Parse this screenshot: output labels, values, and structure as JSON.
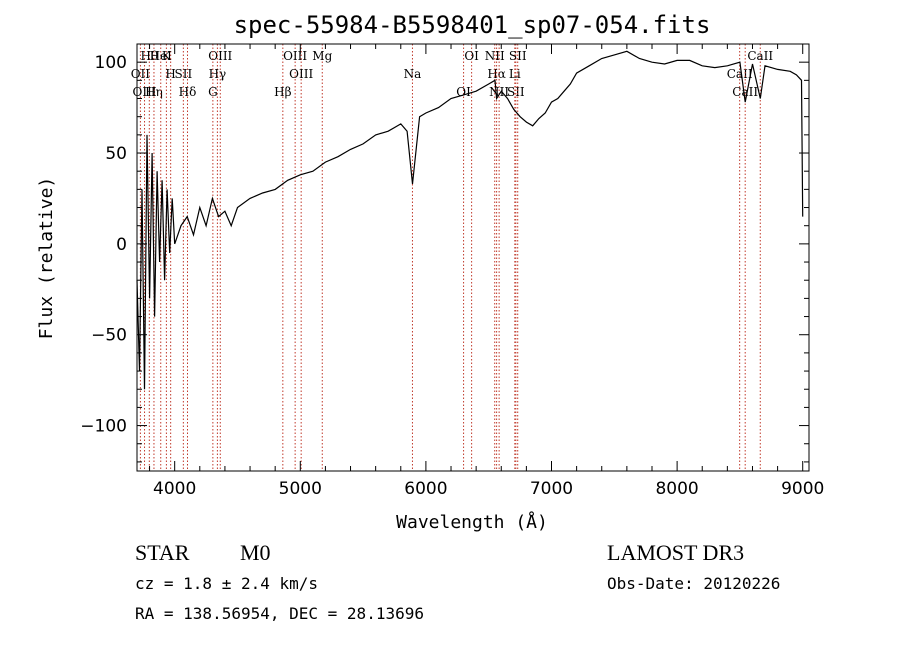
{
  "chart_data": {
    "type": "line",
    "title": "spec-55984-B5598401_sp07-054.fits",
    "xlabel": "Wavelength (Å)",
    "ylabel": "Flux (relative)",
    "xlim": [
      3700,
      9050
    ],
    "ylim": [
      -125,
      110
    ],
    "xticks": [
      4000,
      5000,
      6000,
      7000,
      8000,
      9000
    ],
    "yticks": [
      -100,
      -50,
      0,
      50,
      100
    ],
    "series": [
      {
        "name": "flux",
        "x": [
          3700,
          3720,
          3740,
          3760,
          3780,
          3800,
          3820,
          3840,
          3860,
          3880,
          3900,
          3920,
          3940,
          3960,
          3980,
          4000,
          4050,
          4100,
          4150,
          4200,
          4250,
          4300,
          4350,
          4400,
          4450,
          4500,
          4600,
          4700,
          4800,
          4900,
          5000,
          5100,
          5200,
          5300,
          5400,
          5500,
          5600,
          5700,
          5800,
          5850,
          5893,
          5950,
          6000,
          6100,
          6200,
          6300,
          6400,
          6500,
          6550,
          6563,
          6600,
          6650,
          6700,
          6750,
          6800,
          6850,
          6900,
          6950,
          7000,
          7050,
          7100,
          7150,
          7200,
          7300,
          7400,
          7500,
          7600,
          7700,
          7800,
          7900,
          8000,
          8100,
          8200,
          8300,
          8400,
          8500,
          8542,
          8600,
          8662,
          8700,
          8800,
          8900,
          8950,
          8990,
          9000
        ],
        "y": [
          -20,
          -70,
          30,
          -80,
          60,
          -30,
          50,
          -40,
          40,
          -10,
          35,
          -20,
          30,
          -5,
          25,
          0,
          10,
          15,
          5,
          20,
          10,
          25,
          15,
          18,
          10,
          20,
          25,
          28,
          30,
          35,
          38,
          40,
          45,
          48,
          52,
          55,
          60,
          62,
          66,
          62,
          33,
          70,
          72,
          75,
          80,
          82,
          84,
          88,
          90,
          80,
          84,
          80,
          74,
          70,
          67,
          65,
          69,
          72,
          78,
          80,
          84,
          88,
          94,
          98,
          102,
          104,
          106,
          102,
          100,
          99,
          101,
          101,
          98,
          97,
          98,
          100,
          78,
          99,
          80,
          98,
          96,
          95,
          93,
          90,
          15
        ]
      }
    ],
    "line_markers": [
      {
        "label": "Hθ",
        "x": 3798
      },
      {
        "label": "OII",
        "x": 3727
      },
      {
        "label": "OIII",
        "x": 3760
      },
      {
        "label": "K",
        "x": 3934
      },
      {
        "label": "H",
        "x": 3968
      },
      {
        "label": "Hη",
        "x": 3835
      },
      {
        "label": "HeI",
        "x": 3889
      },
      {
        "label": "SII",
        "x": 4069
      },
      {
        "label": "Hδ",
        "x": 4102
      },
      {
        "label": "OIII",
        "x": 4363
      },
      {
        "label": "Hγ",
        "x": 4340
      },
      {
        "label": "G",
        "x": 4304
      },
      {
        "label": "OIII",
        "x": 4959
      },
      {
        "label": "OIII",
        "x": 5007
      },
      {
        "label": "Hβ",
        "x": 4861
      },
      {
        "label": "Mg",
        "x": 5175
      },
      {
        "label": "Na",
        "x": 5893
      },
      {
        "label": "OI",
        "x": 6300
      },
      {
        "label": "OI",
        "x": 6364
      },
      {
        "label": "Hα",
        "x": 6563
      },
      {
        "label": "SII",
        "x": 6716
      },
      {
        "label": "NII",
        "x": 6548
      },
      {
        "label": "Li",
        "x": 6708
      },
      {
        "label": "NII",
        "x": 6583
      },
      {
        "label": "SII",
        "x": 6731
      },
      {
        "label": "CaII",
        "x": 8498
      },
      {
        "label": "CaII",
        "x": 8542
      },
      {
        "label": "CaII",
        "x": 8662
      }
    ]
  },
  "info": {
    "class": "STAR",
    "subclass": "M0",
    "survey": "LAMOST DR3",
    "cz": "cz = 1.8 ± 2.4 km/s",
    "obs_date": "Obs-Date: 20120226",
    "coords": "RA = 138.56954, DEC =  28.13696"
  },
  "colors": {
    "spectrum": "#000000",
    "marker": "#c0392b",
    "axes": "#000000"
  }
}
